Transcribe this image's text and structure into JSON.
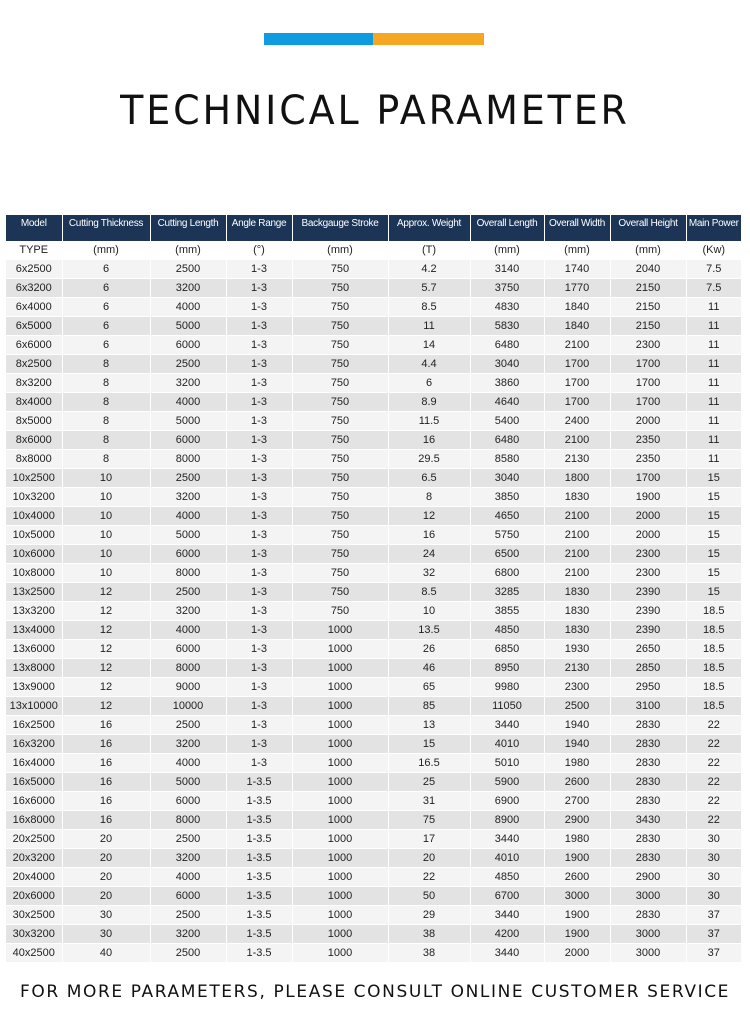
{
  "colors": {
    "accent_blue": "#0f9be0",
    "accent_orange": "#f5a623",
    "header_bg": "#1c3557"
  },
  "title": "TECHNICAL PARAMETER",
  "table": {
    "headers": [
      "Model",
      "Cutting Thickness",
      "Cutting Length",
      "Angle Range",
      "Backgauge Stroke",
      "Approx. Weight",
      "Overall Length",
      "Overall Width",
      "Overall Height",
      "Main Power"
    ],
    "units": [
      "TYPE",
      "(mm)",
      "(mm)",
      "(°)",
      "(mm)",
      "(T)",
      "(mm)",
      "(mm)",
      "(mm)",
      "(Kw)"
    ],
    "rows": [
      [
        "6x2500",
        "6",
        "2500",
        "1-3",
        "750",
        "4.2",
        "3140",
        "1740",
        "2040",
        "7.5"
      ],
      [
        "6x3200",
        "6",
        "3200",
        "1-3",
        "750",
        "5.7",
        "3750",
        "1770",
        "2150",
        "7.5"
      ],
      [
        "6x4000",
        "6",
        "4000",
        "1-3",
        "750",
        "8.5",
        "4830",
        "1840",
        "2150",
        "11"
      ],
      [
        "6x5000",
        "6",
        "5000",
        "1-3",
        "750",
        "11",
        "5830",
        "1840",
        "2150",
        "11"
      ],
      [
        "6x6000",
        "6",
        "6000",
        "1-3",
        "750",
        "14",
        "6480",
        "2100",
        "2300",
        "11"
      ],
      [
        "8x2500",
        "8",
        "2500",
        "1-3",
        "750",
        "4.4",
        "3040",
        "1700",
        "1700",
        "11"
      ],
      [
        "8x3200",
        "8",
        "3200",
        "1-3",
        "750",
        "6",
        "3860",
        "1700",
        "1700",
        "11"
      ],
      [
        "8x4000",
        "8",
        "4000",
        "1-3",
        "750",
        "8.9",
        "4640",
        "1700",
        "1700",
        "11"
      ],
      [
        "8x5000",
        "8",
        "5000",
        "1-3",
        "750",
        "11.5",
        "5400",
        "2400",
        "2000",
        "11"
      ],
      [
        "8x6000",
        "8",
        "6000",
        "1-3",
        "750",
        "16",
        "6480",
        "2100",
        "2350",
        "11"
      ],
      [
        "8x8000",
        "8",
        "8000",
        "1-3",
        "750",
        "29.5",
        "8580",
        "2130",
        "2350",
        "11"
      ],
      [
        "10x2500",
        "10",
        "2500",
        "1-3",
        "750",
        "6.5",
        "3040",
        "1800",
        "1700",
        "15"
      ],
      [
        "10x3200",
        "10",
        "3200",
        "1-3",
        "750",
        "8",
        "3850",
        "1830",
        "1900",
        "15"
      ],
      [
        "10x4000",
        "10",
        "4000",
        "1-3",
        "750",
        "12",
        "4650",
        "2100",
        "2000",
        "15"
      ],
      [
        "10x5000",
        "10",
        "5000",
        "1-3",
        "750",
        "16",
        "5750",
        "2100",
        "2000",
        "15"
      ],
      [
        "10x6000",
        "10",
        "6000",
        "1-3",
        "750",
        "24",
        "6500",
        "2100",
        "2300",
        "15"
      ],
      [
        "10x8000",
        "10",
        "8000",
        "1-3",
        "750",
        "32",
        "6800",
        "2100",
        "2300",
        "15"
      ],
      [
        "13x2500",
        "12",
        "2500",
        "1-3",
        "750",
        "8.5",
        "3285",
        "1830",
        "2390",
        "15"
      ],
      [
        "13x3200",
        "12",
        "3200",
        "1-3",
        "750",
        "10",
        "3855",
        "1830",
        "2390",
        "18.5"
      ],
      [
        "13x4000",
        "12",
        "4000",
        "1-3",
        "1000",
        "13.5",
        "4850",
        "1830",
        "2390",
        "18.5"
      ],
      [
        "13x6000",
        "12",
        "6000",
        "1-3",
        "1000",
        "26",
        "6850",
        "1930",
        "2650",
        "18.5"
      ],
      [
        "13x8000",
        "12",
        "8000",
        "1-3",
        "1000",
        "46",
        "8950",
        "2130",
        "2850",
        "18.5"
      ],
      [
        "13x9000",
        "12",
        "9000",
        "1-3",
        "1000",
        "65",
        "9980",
        "2300",
        "2950",
        "18.5"
      ],
      [
        "13x10000",
        "12",
        "10000",
        "1-3",
        "1000",
        "85",
        "11050",
        "2500",
        "3100",
        "18.5"
      ],
      [
        "16x2500",
        "16",
        "2500",
        "1-3",
        "1000",
        "13",
        "3440",
        "1940",
        "2830",
        "22"
      ],
      [
        "16x3200",
        "16",
        "3200",
        "1-3",
        "1000",
        "15",
        "4010",
        "1940",
        "2830",
        "22"
      ],
      [
        "16x4000",
        "16",
        "4000",
        "1-3",
        "1000",
        "16.5",
        "5010",
        "1980",
        "2830",
        "22"
      ],
      [
        "16x5000",
        "16",
        "5000",
        "1-3.5",
        "1000",
        "25",
        "5900",
        "2600",
        "2830",
        "22"
      ],
      [
        "16x6000",
        "16",
        "6000",
        "1-3.5",
        "1000",
        "31",
        "6900",
        "2700",
        "2830",
        "22"
      ],
      [
        "16x8000",
        "16",
        "8000",
        "1-3.5",
        "1000",
        "75",
        "8900",
        "2900",
        "3430",
        "22"
      ],
      [
        "20x2500",
        "20",
        "2500",
        "1-3.5",
        "1000",
        "17",
        "3440",
        "1980",
        "2830",
        "30"
      ],
      [
        "20x3200",
        "20",
        "3200",
        "1-3.5",
        "1000",
        "20",
        "4010",
        "1900",
        "2830",
        "30"
      ],
      [
        "20x4000",
        "20",
        "4000",
        "1-3.5",
        "1000",
        "22",
        "4850",
        "2600",
        "2900",
        "30"
      ],
      [
        "20x6000",
        "20",
        "6000",
        "1-3.5",
        "1000",
        "50",
        "6700",
        "3000",
        "3000",
        "30"
      ],
      [
        "30x2500",
        "30",
        "2500",
        "1-3.5",
        "1000",
        "29",
        "3440",
        "1900",
        "2830",
        "37"
      ],
      [
        "30x3200",
        "30",
        "3200",
        "1-3.5",
        "1000",
        "38",
        "4200",
        "1900",
        "3000",
        "37"
      ],
      [
        "40x2500",
        "40",
        "2500",
        "1-3.5",
        "1000",
        "38",
        "3440",
        "2000",
        "3000",
        "37"
      ]
    ]
  },
  "footer": "FOR MORE PARAMETERS, PLEASE CONSULT ONLINE CUSTOMER SERVICE"
}
